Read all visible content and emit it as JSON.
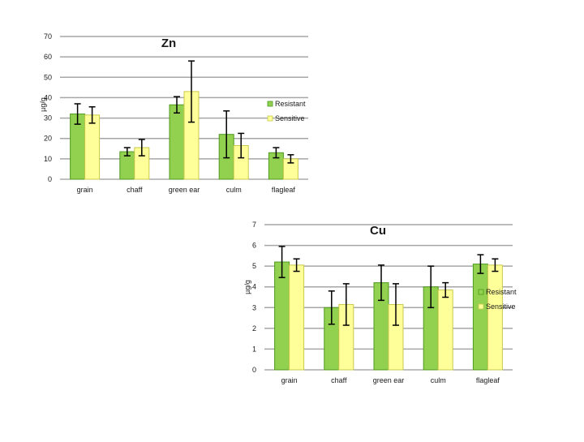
{
  "colors": {
    "resistant": "#92D050",
    "resistant_edge": "#4E9A1E",
    "sensitive": "#FFFF99",
    "sensitive_edge": "#C9C94A",
    "grid": "#A6A6A6",
    "axis": "#808080",
    "error_bar": "#000000",
    "text": "#1a1a1a"
  },
  "chart_data": [
    {
      "type": "bar",
      "title": "Zn",
      "ylabel": "µg/g",
      "xlabel": "",
      "ylim": [
        0,
        70
      ],
      "yticks": [
        0,
        10,
        20,
        30,
        40,
        50,
        60,
        70
      ],
      "categories": [
        "grain",
        "chaff",
        "green ear",
        "culm",
        "flagleaf"
      ],
      "series": [
        {
          "name": "Resistant",
          "values": [
            32,
            13.5,
            36.5,
            22,
            13
          ],
          "errors": [
            5,
            2,
            4,
            11.5,
            2.5
          ]
        },
        {
          "name": "Sensitive",
          "values": [
            31.5,
            15.5,
            43,
            16.5,
            10
          ],
          "errors": [
            4,
            4,
            15,
            6,
            2
          ]
        }
      ],
      "grid": true,
      "legend_position": "right"
    },
    {
      "type": "bar",
      "title": "Cu",
      "ylabel": "µg/g",
      "xlabel": "",
      "ylim": [
        0,
        7
      ],
      "yticks": [
        0,
        1,
        2,
        3,
        4,
        5,
        6,
        7
      ],
      "categories": [
        "grain",
        "chaff",
        "green ear",
        "culm",
        "flagleaf"
      ],
      "series": [
        {
          "name": "Resistant",
          "values": [
            5.2,
            3.0,
            4.2,
            4.0,
            5.1
          ],
          "errors": [
            0.75,
            0.8,
            0.85,
            1.0,
            0.45
          ]
        },
        {
          "name": "Sensitive",
          "values": [
            5.05,
            3.15,
            3.15,
            3.85,
            5.05
          ],
          "errors": [
            0.3,
            1.0,
            1.0,
            0.35,
            0.3
          ]
        }
      ],
      "grid": true,
      "legend_position": "right"
    }
  ]
}
